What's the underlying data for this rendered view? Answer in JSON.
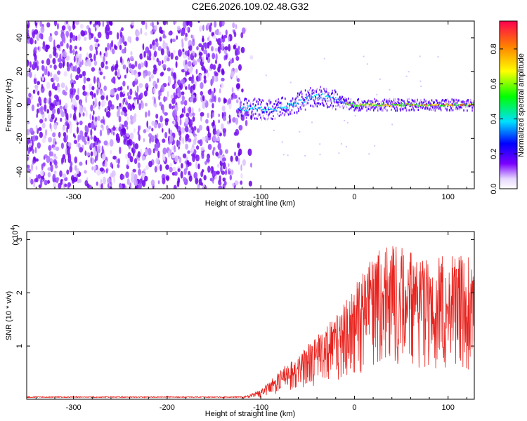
{
  "title": "C2E6.2026.109.02.48.G32",
  "chart_data": [
    {
      "type": "heatmap",
      "name": "spectrogram",
      "xlabel": "Height of straight line (km)",
      "ylabel": "Frequency (Hz)",
      "xlim": [
        -350,
        128
      ],
      "ylim": [
        -50,
        50
      ],
      "xticks": [
        -300,
        -200,
        -100,
        0,
        100
      ],
      "yticks": [
        -40,
        -20,
        0,
        20,
        40
      ],
      "colorbar": {
        "label": "Normalized spectral amplitude",
        "range": [
          0,
          0.96
        ],
        "ticks": [
          "0.0",
          "0.2",
          "0.4",
          "0.6",
          "0.8"
        ]
      },
      "features": {
        "noise_region_x": [
          -350,
          -105
        ],
        "signal_start_x": -125,
        "signal_track": [
          {
            "x": -125,
            "y": -2
          },
          {
            "x": -110,
            "y": -2
          },
          {
            "x": -95,
            "y": -3
          },
          {
            "x": -80,
            "y": -2
          },
          {
            "x": -65,
            "y": 0
          },
          {
            "x": -50,
            "y": 4
          },
          {
            "x": -35,
            "y": 5
          },
          {
            "x": -20,
            "y": 3
          },
          {
            "x": -10,
            "y": 1
          },
          {
            "x": 0,
            "y": 0
          },
          {
            "x": 15,
            "y": 0
          },
          {
            "x": 30,
            "y": 0
          },
          {
            "x": 50,
            "y": 0
          },
          {
            "x": 70,
            "y": 0
          },
          {
            "x": 90,
            "y": 0
          },
          {
            "x": 110,
            "y": 0
          },
          {
            "x": 128,
            "y": 0
          }
        ]
      }
    },
    {
      "type": "line",
      "name": "snr",
      "xlabel": "Height of straight line (km)",
      "ylabel": "SNR (10 * v/v)",
      "multiplier_label": "(x10",
      "multiplier_exp": "4",
      "xlim": [
        -350,
        128
      ],
      "ylim": [
        0,
        3.15
      ],
      "xticks": [
        -300,
        -200,
        -100,
        0,
        100
      ],
      "yticks": [
        1,
        2,
        3
      ],
      "color": "#e8231e",
      "envelope": [
        {
          "x": -350,
          "y": 0.03
        },
        {
          "x": -120,
          "y": 0.03
        },
        {
          "x": -100,
          "y": 0.15
        },
        {
          "x": -80,
          "y": 0.45
        },
        {
          "x": -60,
          "y": 0.7
        },
        {
          "x": -40,
          "y": 1.0
        },
        {
          "x": -20,
          "y": 1.3
        },
        {
          "x": 0,
          "y": 1.8
        },
        {
          "x": 20,
          "y": 2.3
        },
        {
          "x": 40,
          "y": 2.5
        },
        {
          "x": 60,
          "y": 2.3
        },
        {
          "x": 80,
          "y": 2.2
        },
        {
          "x": 100,
          "y": 2.3
        },
        {
          "x": 128,
          "y": 2.2
        }
      ]
    }
  ]
}
